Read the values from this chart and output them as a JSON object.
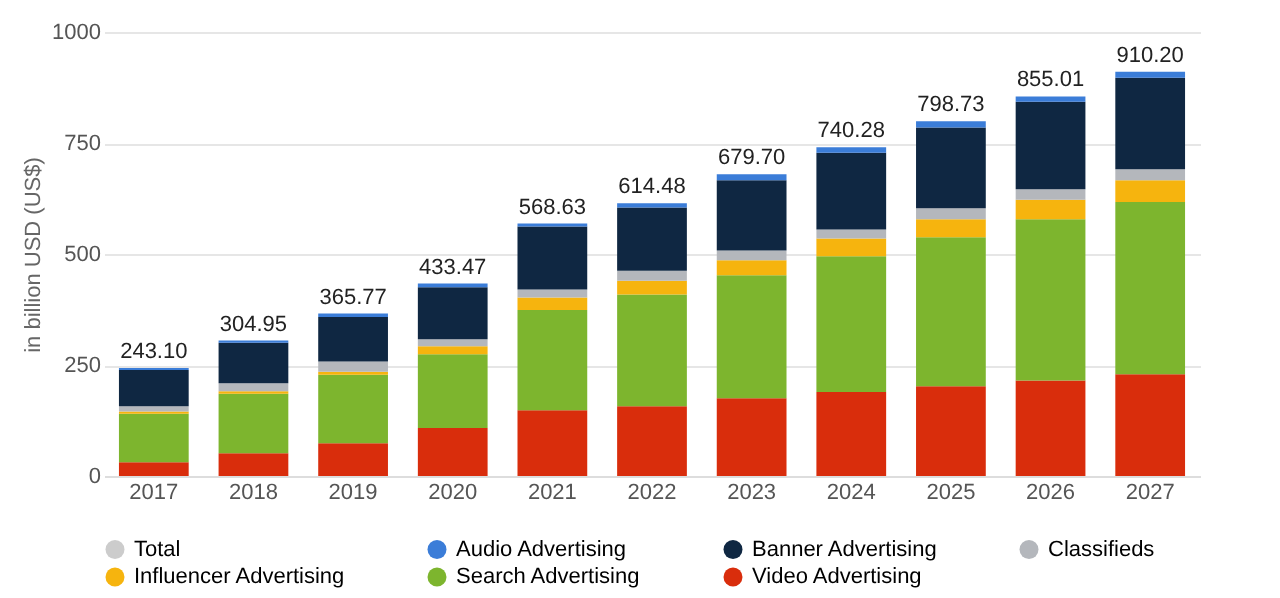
{
  "chart_data": {
    "type": "bar",
    "stacked": true,
    "ylabel": "in billion USD (US$)",
    "categories": [
      "2017",
      "2018",
      "2019",
      "2020",
      "2021",
      "2022",
      "2023",
      "2024",
      "2025",
      "2026",
      "2027"
    ],
    "series": [
      {
        "name": "Video Advertising",
        "color": "#d92d0c",
        "values": [
          31,
          51,
          74,
          108,
          148,
          157,
          175,
          189,
          202,
          215,
          229
        ]
      },
      {
        "name": "Search Advertising",
        "color": "#7db52e",
        "values": [
          109,
          134,
          154,
          166,
          226,
          252,
          277,
          306,
          336,
          363,
          388
        ]
      },
      {
        "name": "Influencer Advertising",
        "color": "#f6b40e",
        "values": [
          5,
          6,
          7,
          18,
          28,
          31,
          34,
          40,
          40,
          44,
          49
        ]
      },
      {
        "name": "Classifieds",
        "color": "#b4b7bc",
        "values": [
          12,
          18,
          23,
          16,
          18,
          22,
          22,
          20,
          25,
          24,
          25
        ]
      },
      {
        "name": "Banner Advertising",
        "color": "#0f2742",
        "values": [
          82,
          91,
          100,
          117,
          142,
          143,
          158,
          173,
          182,
          197,
          206
        ]
      },
      {
        "name": "Audio Advertising",
        "color": "#3b7dd8",
        "values": [
          4.1,
          4.95,
          7.77,
          8.47,
          6.63,
          9.48,
          13.7,
          12.28,
          13.73,
          12.01,
          13.2
        ]
      },
      {
        "name": "Total",
        "color": "#cccccc",
        "values": [
          null,
          null,
          null,
          null,
          null,
          null,
          null,
          null,
          null,
          null,
          null
        ]
      }
    ],
    "totals": [
      "243.10",
      "304.95",
      "365.77",
      "433.47",
      "568.63",
      "614.48",
      "679.70",
      "740.28",
      "798.73",
      "855.01",
      "910.20"
    ],
    "ylim": [
      0,
      1000
    ],
    "yticks": [
      0,
      250,
      500,
      750,
      1000
    ],
    "grid": "y",
    "legend": "bottom"
  }
}
